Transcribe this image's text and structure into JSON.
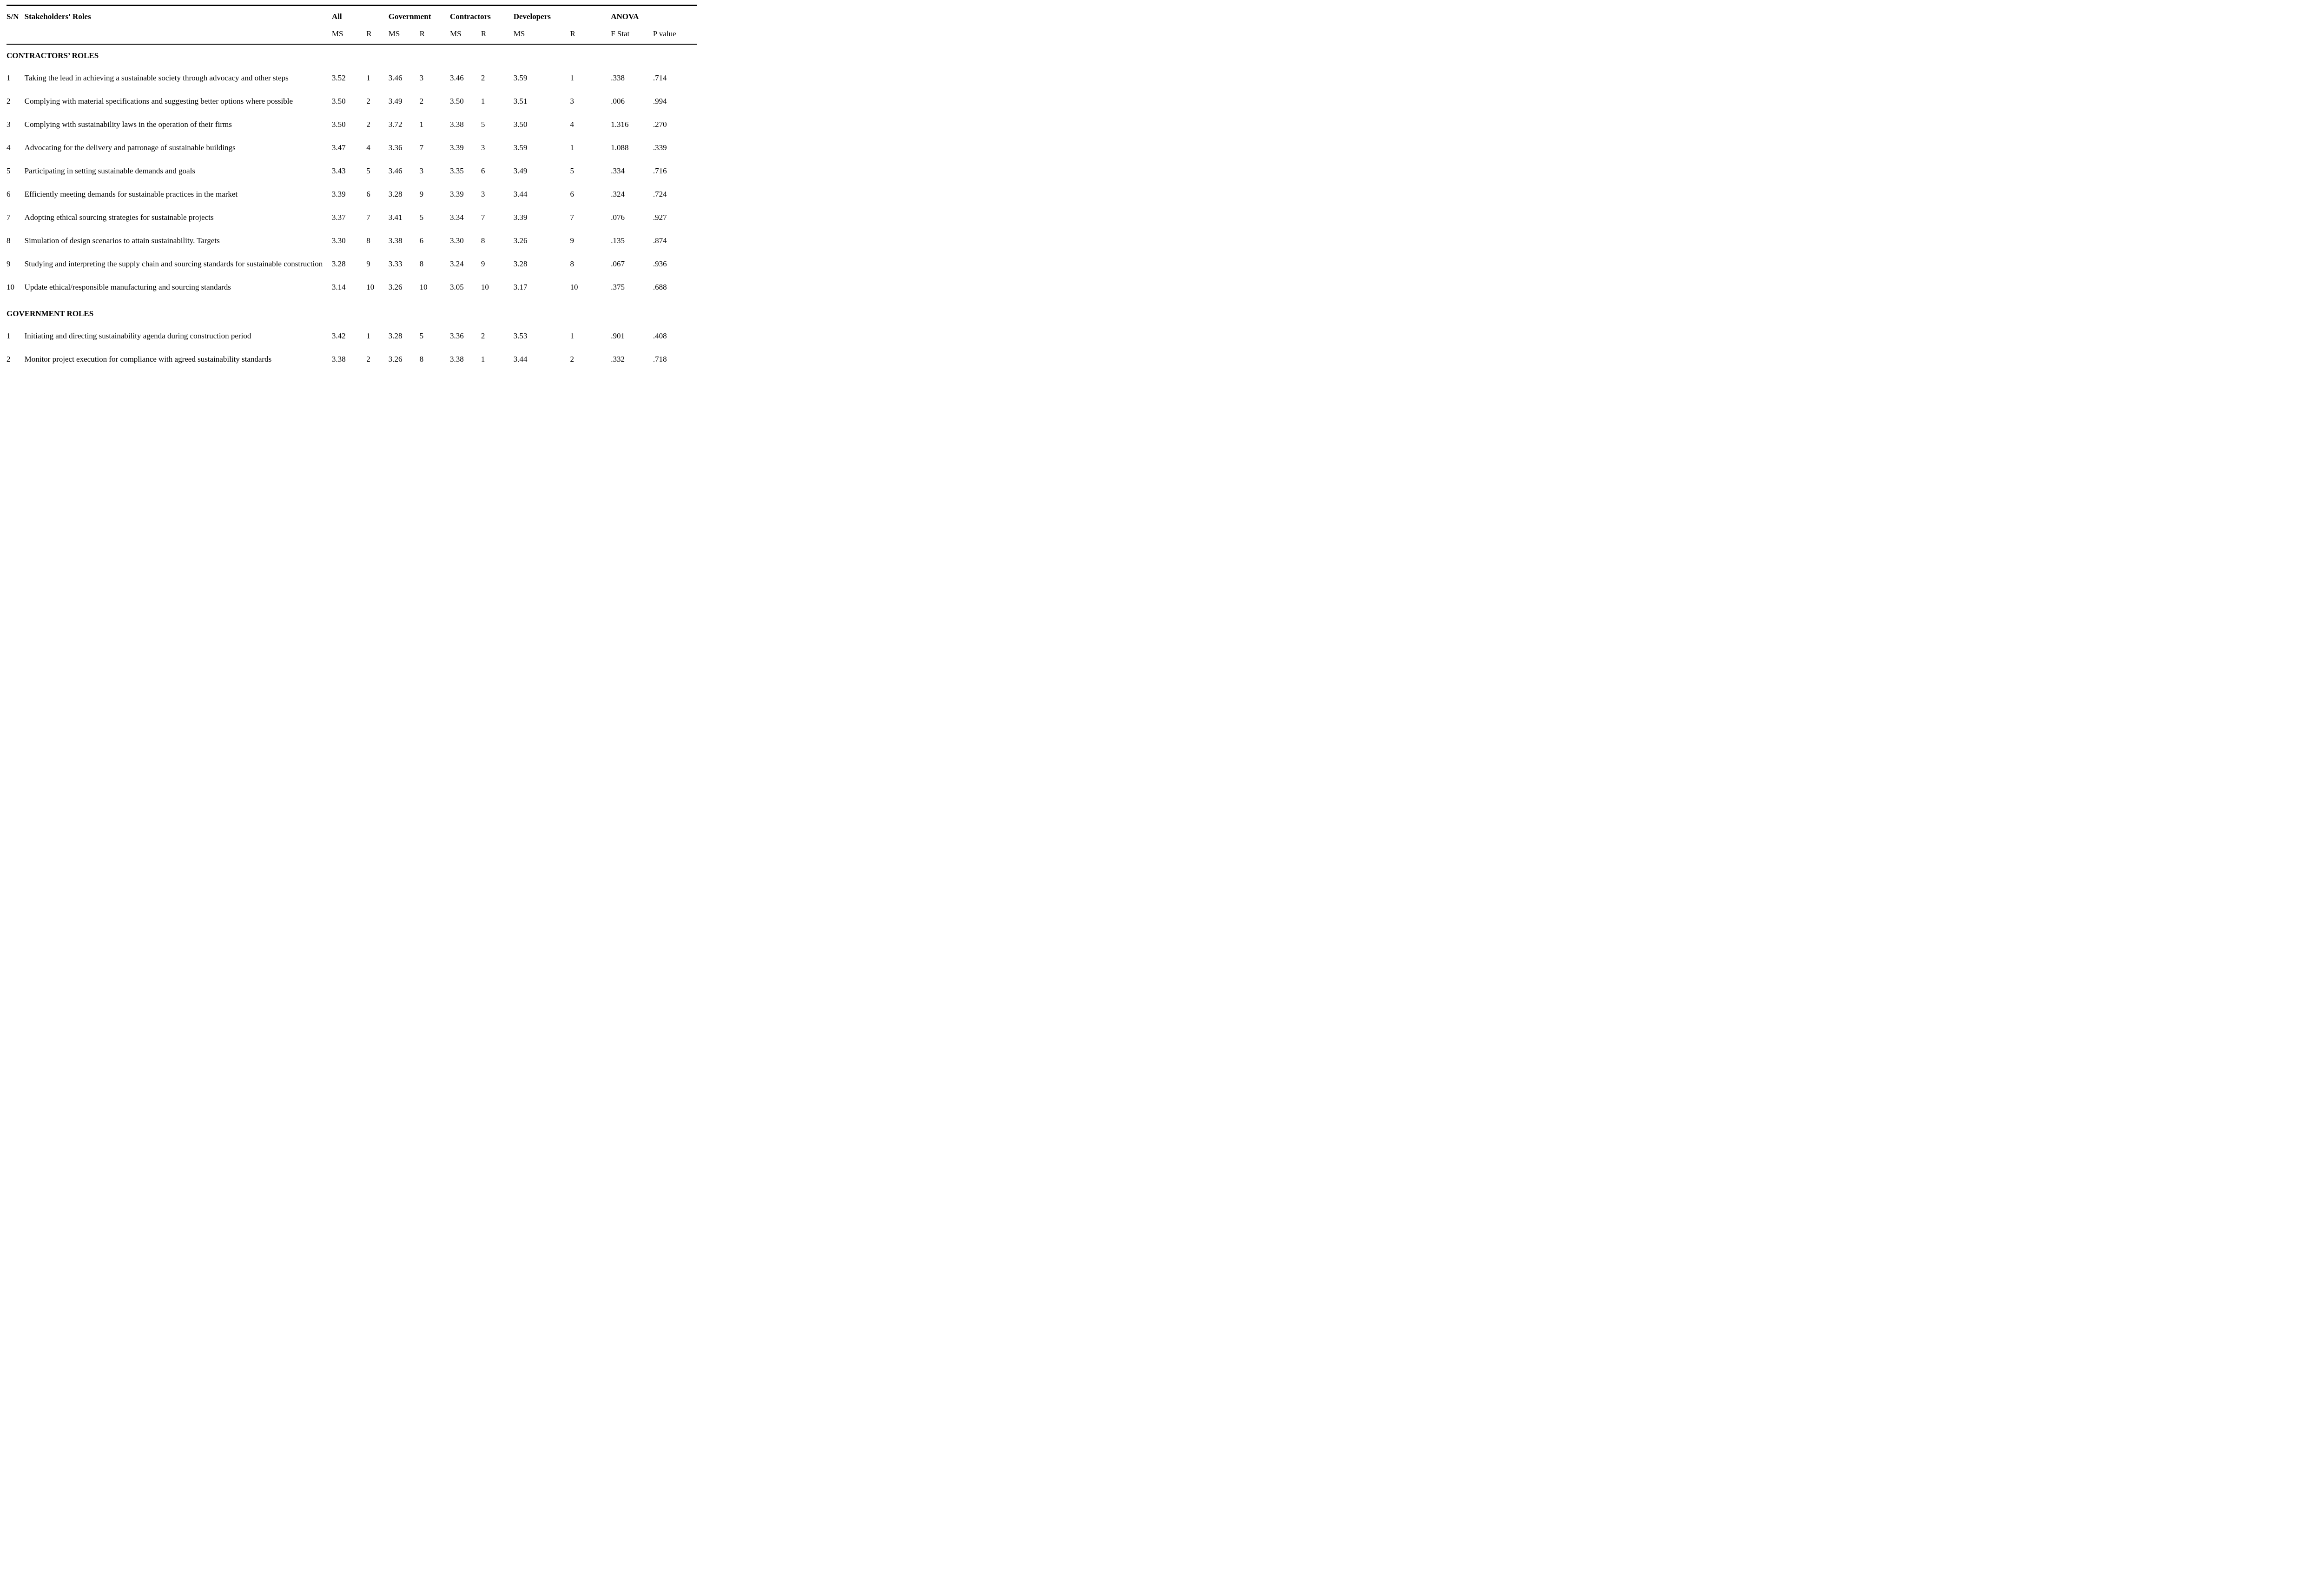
{
  "table": {
    "columns": {
      "sn": "S/N",
      "roles": "Stakeholders' Roles",
      "groups": [
        {
          "label": "All",
          "sub": [
            "MS",
            "R"
          ]
        },
        {
          "label": "Government",
          "sub": [
            "MS",
            "R"
          ]
        },
        {
          "label": "Contractors",
          "sub": [
            "MS",
            "R"
          ]
        },
        {
          "label": "Developers",
          "sub": [
            "MS",
            "R"
          ]
        },
        {
          "label": "ANOVA",
          "sub": [
            "F Stat",
            "P value"
          ]
        }
      ]
    },
    "sections": [
      {
        "header": "CONTRACTORS’ ROLES",
        "rows": [
          {
            "sn": "1",
            "role": "Taking the lead in achieving a sustainable society through advocacy and other steps",
            "values": [
              "3.52",
              "1",
              "3.46",
              "3",
              "3.46",
              "2",
              "3.59",
              "1",
              ".338",
              ".714"
            ]
          },
          {
            "sn": "2",
            "role": "Complying with material specifications and suggesting better options where possible",
            "values": [
              "3.50",
              "2",
              "3.49",
              "2",
              "3.50",
              "1",
              "3.51",
              "3",
              ".006",
              ".994"
            ]
          },
          {
            "sn": "3",
            "role": "Complying with sustainability laws in the operation of their firms",
            "values": [
              "3.50",
              "2",
              "3.72",
              "1",
              "3.38",
              "5",
              "3.50",
              "4",
              "1.316",
              ".270"
            ]
          },
          {
            "sn": "4",
            "role": "Advocating for the delivery and patronage of sustainable buildings",
            "values": [
              "3.47",
              "4",
              "3.36",
              "7",
              "3.39",
              "3",
              "3.59",
              "1",
              "1.088",
              ".339"
            ]
          },
          {
            "sn": "5",
            "role": "Participating in setting sustainable demands and goals",
            "values": [
              "3.43",
              "5",
              "3.46",
              "3",
              "3.35",
              "6",
              "3.49",
              "5",
              ".334",
              ".716"
            ]
          },
          {
            "sn": "6",
            "role": "Efficiently meeting demands for sustainable practices in the market",
            "values": [
              "3.39",
              "6",
              "3.28",
              "9",
              "3.39",
              "3",
              "3.44",
              "6",
              ".324",
              ".724"
            ]
          },
          {
            "sn": "7",
            "role": "Adopting ethical sourcing strategies for sustainable projects",
            "values": [
              "3.37",
              "7",
              "3.41",
              "5",
              "3.34",
              "7",
              "3.39",
              "7",
              ".076",
              ".927"
            ]
          },
          {
            "sn": "8",
            "role": "Simulation of design scenarios to attain sustainability. Targets",
            "values": [
              "3.30",
              "8",
              "3.38",
              "6",
              "3.30",
              "8",
              "3.26",
              "9",
              ".135",
              ".874"
            ]
          },
          {
            "sn": "9",
            "role": "Studying and interpreting the supply chain and sourcing standards for sustainable construction",
            "values": [
              "3.28",
              "9",
              "3.33",
              "8",
              "3.24",
              "9",
              "3.28",
              "8",
              ".067",
              ".936"
            ]
          },
          {
            "sn": "10",
            "role": "Update ethical/responsible manufacturing and sourcing standards",
            "values": [
              "3.14",
              "10",
              "3.26",
              "10",
              "3.05",
              "10",
              "3.17",
              "10",
              ".375",
              ".688"
            ]
          }
        ]
      },
      {
        "header": "GOVERNMENT ROLES",
        "rows": [
          {
            "sn": "1",
            "role": "Initiating and directing sustainability agenda during construction period",
            "values": [
              "3.42",
              "1",
              "3.28",
              "5",
              "3.36",
              "2",
              "3.53",
              "1",
              ".901",
              ".408"
            ]
          },
          {
            "sn": "2",
            "role": "Monitor project execution for compliance with agreed sustainability standards",
            "values": [
              "3.38",
              "2",
              "3.26",
              "8",
              "3.38",
              "1",
              "3.44",
              "2",
              ".332",
              ".718"
            ]
          }
        ]
      }
    ]
  }
}
